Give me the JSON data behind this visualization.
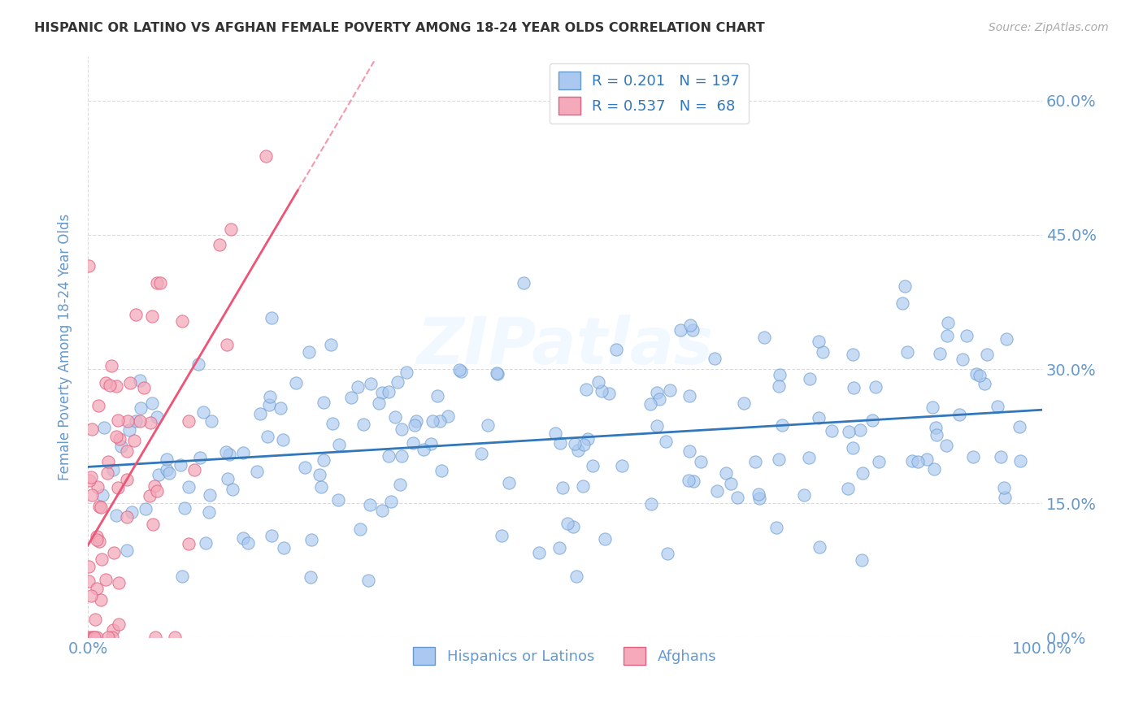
{
  "title": "HISPANIC OR LATINO VS AFGHAN FEMALE POVERTY AMONG 18-24 YEAR OLDS CORRELATION CHART",
  "source_text": "Source: ZipAtlas.com",
  "ylabel": "Female Poverty Among 18-24 Year Olds",
  "xlim": [
    0,
    1.0
  ],
  "ylim": [
    0.0,
    0.65
  ],
  "yticks": [
    0.0,
    0.15,
    0.3,
    0.45,
    0.6
  ],
  "ytick_labels": [
    "0.0%",
    "15.0%",
    "30.0%",
    "45.0%",
    "60.0%"
  ],
  "xticks": [
    0.0,
    1.0
  ],
  "xtick_labels": [
    "0.0%",
    "100.0%"
  ],
  "legend_entry_blue": "R = 0.201   N = 197",
  "legend_entry_pink": "R = 0.537   N =  68",
  "legend_labels": [
    "Hispanics or Latinos",
    "Afghans"
  ],
  "watermark": "ZIPatlas",
  "background_color": "#ffffff",
  "grid_color": "#cccccc",
  "title_color": "#333333",
  "axis_label_color": "#6699cc",
  "tick_label_color": "#6699cc",
  "hispanic_color": "#aac8f0",
  "afghan_color": "#f4aabb",
  "hispanic_edge": "#6699cc",
  "afghan_edge": "#e06080",
  "hispanic_trend_color": "#3377bb",
  "afghan_trend_color": "#ee5577",
  "R_hispanic": 0.201,
  "N_hispanic": 197,
  "R_afghan": 0.537,
  "N_afghan": 68
}
